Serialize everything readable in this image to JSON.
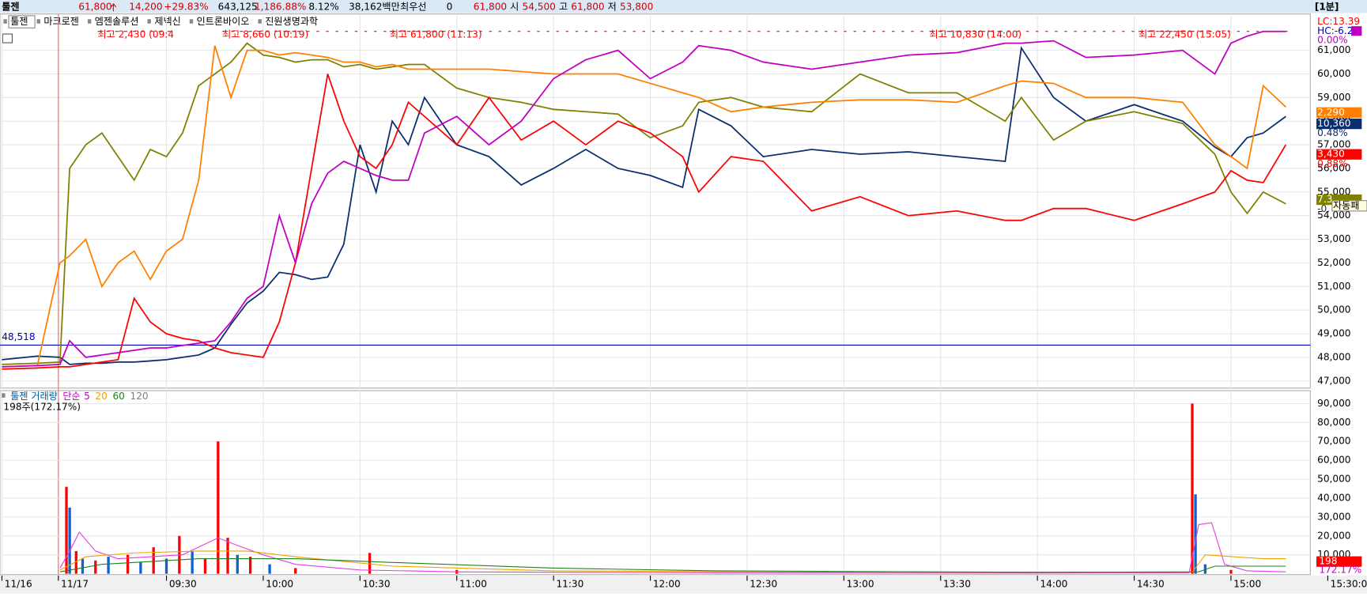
{
  "header": {
    "name": "툴젠",
    "price": "61,800",
    "change": "14,200",
    "change_pct": "+29.83%",
    "volume": "643,125",
    "volume_pct": "1,186.88%",
    "turnover": "8.12%",
    "amount": "38,162백만",
    "best_label": "최우선",
    "best": "0",
    "best_price": "61,800",
    "open_label": "시",
    "open": "54,500",
    "high_label": "고",
    "high": "61,800",
    "low_label": "저",
    "low": "53,800",
    "period": "[1분]"
  },
  "tabs": [
    "툴젠",
    "마크로젠",
    "엠젠솔루션",
    "제넥신",
    "인트론바이오",
    "진원생명과학"
  ],
  "chart_data": [
    {
      "type": "line",
      "x": [
        -21,
        -10,
        -3,
        0,
        5,
        10,
        15,
        20,
        25,
        30,
        35,
        40,
        45,
        50,
        55,
        60,
        65,
        70,
        75,
        80,
        85,
        90,
        95,
        100,
        105,
        110,
        120,
        130,
        140,
        150,
        160,
        170,
        180,
        190,
        195,
        205,
        215,
        230,
        245,
        260,
        275,
        290,
        295,
        305,
        315,
        330,
        345,
        355,
        360,
        365,
        370,
        377
      ],
      "xlim": [
        -21.6,
        384.6
      ],
      "xticks": [
        {
          "value": -21,
          "label": "11/16"
        },
        {
          "value": -3.5,
          "label": "11/17"
        },
        {
          "value": 30,
          "label": "09:30"
        },
        {
          "value": 60,
          "label": "10:00"
        },
        {
          "value": 90,
          "label": "10:30"
        },
        {
          "value": 120,
          "label": "11:00"
        },
        {
          "value": 150,
          "label": "11:30"
        },
        {
          "value": 180,
          "label": "12:00"
        },
        {
          "value": 210,
          "label": "12:30"
        },
        {
          "value": 240,
          "label": "13:00"
        },
        {
          "value": 270,
          "label": "13:30"
        },
        {
          "value": 300,
          "label": "14:00"
        },
        {
          "value": 330,
          "label": "14:30"
        },
        {
          "value": 360,
          "label": "15:00"
        },
        {
          "value": 390,
          "label": "15:30:00"
        }
      ],
      "ylim": [
        46700,
        61800
      ],
      "yticks": [
        {
          "value": 47000,
          "label": "47,000"
        },
        {
          "value": 48000,
          "label": "48,000"
        },
        {
          "value": 49000,
          "label": "49,000"
        },
        {
          "value": 50000,
          "label": "50,000"
        },
        {
          "value": 51000,
          "label": "51,000"
        },
        {
          "value": 52000,
          "label": "52,000"
        },
        {
          "value": 53000,
          "label": "53,000"
        },
        {
          "value": 54000,
          "label": "54,000"
        },
        {
          "value": 55000,
          "label": "55,000"
        },
        {
          "value": 56000,
          "label": "56,000"
        },
        {
          "value": 57000,
          "label": "57,000"
        },
        {
          "value": 58000,
          "label": "58,000"
        },
        {
          "value": 59000,
          "label": "59,000"
        },
        {
          "value": 60000,
          "label": "60,000"
        },
        {
          "value": 61000,
          "label": "61,000"
        }
      ],
      "grid": true,
      "hline": {
        "value": 48518,
        "label": "48,518",
        "color": "#0000c0"
      },
      "series": [
        {
          "color": "#0a2e6e",
          "values": [
            47900,
            48050,
            48000,
            47700,
            47750,
            47750,
            47800,
            47800,
            47850,
            47900,
            48000,
            48100,
            48400,
            49400,
            50300,
            50800,
            51600,
            51500,
            51300,
            51400,
            52800,
            57000,
            55000,
            58000,
            57000,
            59000,
            57000,
            56500,
            55300,
            56000,
            56800,
            56000,
            55700,
            55200,
            58500,
            57800,
            56500,
            56800,
            56600,
            56700,
            56500,
            56300,
            61100,
            59000,
            58000,
            58700,
            58000,
            56900,
            56500,
            57300,
            57500,
            58200
          ]
        },
        {
          "color": "#808000",
          "values": [
            47700,
            47750,
            47800,
            56000,
            57000,
            57500,
            56500,
            55500,
            56800,
            56500,
            57500,
            59500,
            60000,
            60500,
            61300,
            60800,
            60700,
            60500,
            60600,
            60600,
            60300,
            60400,
            60200,
            60300,
            60400,
            60400,
            59400,
            59000,
            58800,
            58500,
            58400,
            58300,
            57300,
            57800,
            58800,
            59000,
            58600,
            58400,
            60000,
            59200,
            59200,
            58000,
            59000,
            57200,
            58000,
            58400,
            57900,
            56600,
            55000,
            54100,
            55000,
            54500
          ]
        },
        {
          "color": "#ff8000",
          "values": [
            47600,
            47650,
            52000,
            52300,
            53000,
            51000,
            52000,
            52500,
            51300,
            52500,
            53000,
            55500,
            61200,
            59000,
            61000,
            61000,
            60800,
            60900,
            60800,
            60700,
            60500,
            60500,
            60300,
            60400,
            60200,
            60200,
            60200,
            60200,
            60100,
            60000,
            60000,
            60000,
            59600,
            59200,
            59000,
            58400,
            58600,
            58800,
            58900,
            58900,
            58800,
            59500,
            59700,
            59600,
            59000,
            59000,
            58800,
            57000,
            56500,
            56000,
            59500,
            58600
          ]
        },
        {
          "color": "#ff0000",
          "values": [
            47500,
            47550,
            47600,
            47600,
            47700,
            47800,
            47900,
            50500,
            49500,
            49000,
            48800,
            48700,
            48400,
            48200,
            48100,
            48000,
            49500,
            52000,
            56000,
            60000,
            58000,
            56500,
            56000,
            57000,
            58800,
            58200,
            57000,
            59000,
            57200,
            58000,
            57000,
            58000,
            57500,
            56500,
            55000,
            56500,
            56300,
            54200,
            54800,
            54000,
            54200,
            53800,
            53800,
            54300,
            54300,
            53800,
            54500,
            55000,
            55900,
            55500,
            55400,
            57000
          ]
        },
        {
          "color": "#c000c0",
          "values": [
            47600,
            47650,
            47700,
            48700,
            48000,
            48100,
            48200,
            48300,
            48400,
            48400,
            48500,
            48600,
            48700,
            49500,
            50500,
            51000,
            54000,
            52000,
            54500,
            55800,
            56300,
            56000,
            55700,
            55500,
            55500,
            57500,
            58200,
            57000,
            58000,
            59800,
            60600,
            61000,
            59800,
            60500,
            61200,
            61000,
            60500,
            60200,
            60500,
            60800,
            60900,
            61300,
            61300,
            61400,
            60700,
            60800,
            61000,
            60000,
            61300,
            61600,
            61800,
            61800
          ]
        }
      ],
      "annotations": [
        "최고 2,430 (09:4",
        "최고 8,660 (10:19)",
        "최고 61,800 (11:13)",
        "최고 10,830 (14:00)",
        "최고 22,450 (15:05)"
      ],
      "side_labels": [
        "LC:13.39",
        "HC:-6.28",
        "0.00%",
        "2,290",
        "10,360",
        "0.48%",
        "3,430",
        "0.88%",
        "7.3",
        "-0.",
        "자동패"
      ]
    },
    {
      "type": "bar",
      "title": "툴젠 거래량",
      "ma_label": "단순",
      "ma_periods": [
        "5",
        "20",
        "60",
        "120"
      ],
      "summary": "198주(172.17%)",
      "x": [
        -1,
        0,
        2,
        4,
        8,
        12,
        18,
        22,
        26,
        30,
        34,
        38,
        42,
        46,
        49,
        52,
        56,
        62,
        70,
        93,
        120,
        348,
        349,
        352,
        360
      ],
      "values": [
        46000,
        35000,
        12000,
        8000,
        7000,
        9000,
        10000,
        6000,
        14000,
        8000,
        20000,
        12000,
        8000,
        70000,
        19000,
        10000,
        9000,
        5000,
        3000,
        11000,
        2000,
        90000,
        42000,
        5000,
        2000
      ],
      "colors": [
        "#ff0000",
        "#1060d0",
        "#ff0000",
        "#1060d0",
        "#ff0000",
        "#1060d0",
        "#ff0000",
        "#1060d0",
        "#ff0000",
        "#1060d0",
        "#ff0000",
        "#1060d0",
        "#ff0000",
        "#ff0000",
        "#ff0000",
        "#1060d0",
        "#ff0000",
        "#1060d0",
        "#ff0000",
        "#ff0000",
        "#ff0000",
        "#ff0000",
        "#1060d0",
        "#1060d0",
        "#ff0000"
      ],
      "xlim": [
        -21.6,
        384.6
      ],
      "ylim": [
        0,
        95000
      ],
      "yticks": [
        {
          "value": 10000,
          "label": "10,000"
        },
        {
          "value": 20000,
          "label": "20,000"
        },
        {
          "value": 30000,
          "label": "30,000"
        },
        {
          "value": 40000,
          "label": "40,000"
        },
        {
          "value": 50000,
          "label": "50,000"
        },
        {
          "value": 60000,
          "label": "60,000"
        },
        {
          "value": 70000,
          "label": "70,000"
        },
        {
          "value": 80000,
          "label": "80,000"
        },
        {
          "value": 90000,
          "label": "90,000"
        }
      ],
      "ma_series": [
        {
          "color": "#e040e0",
          "x": [
            -3,
            0,
            3,
            8,
            15,
            25,
            35,
            46,
            52,
            60,
            70,
            90,
            120,
            200,
            300,
            347,
            350,
            354,
            358,
            365,
            377
          ],
          "values": [
            3000,
            12000,
            22000,
            12000,
            8000,
            9000,
            10000,
            19000,
            15000,
            10000,
            5000,
            2000,
            1000,
            500,
            300,
            500,
            26000,
            27000,
            5000,
            1500,
            1000
          ]
        },
        {
          "color": "#f0a000",
          "x": [
            -3,
            5,
            20,
            40,
            55,
            70,
            100,
            150,
            250,
            348,
            352,
            370,
            377
          ],
          "values": [
            2000,
            9000,
            11000,
            12000,
            12000,
            9000,
            4000,
            1500,
            800,
            800,
            10000,
            8000,
            8000
          ]
        },
        {
          "color": "#208020",
          "x": [
            -3,
            10,
            40,
            70,
            100,
            150,
            200,
            300,
            350,
            355,
            377
          ],
          "values": [
            1000,
            5000,
            8000,
            8000,
            6000,
            3000,
            1500,
            800,
            1000,
            4000,
            4000
          ]
        }
      ],
      "side_labels": [
        "198",
        "172.17%"
      ]
    }
  ]
}
